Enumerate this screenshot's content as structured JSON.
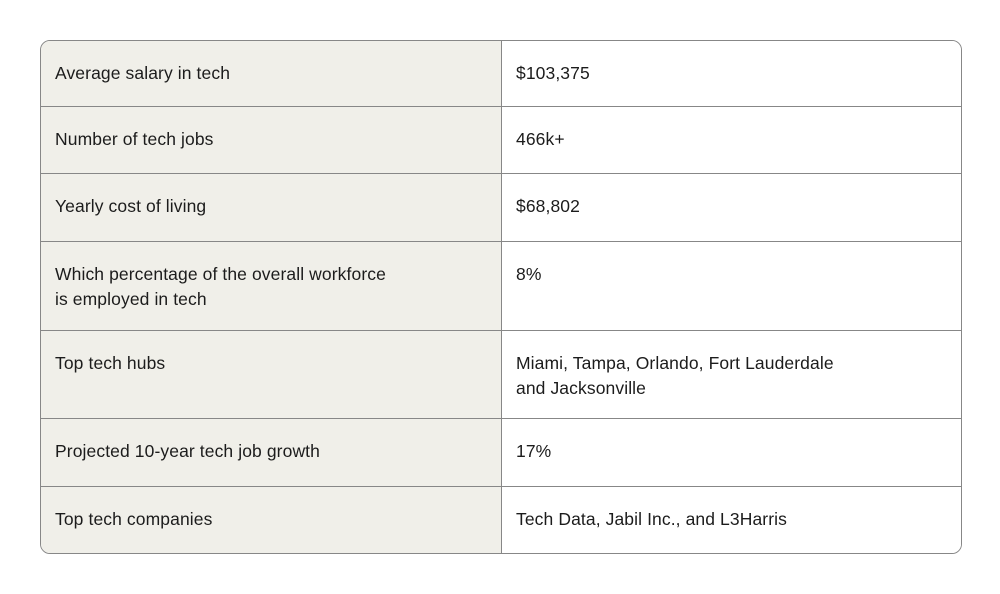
{
  "colors": {
    "page_bg": "#ffffff",
    "label_column_bg": "#f0efe9",
    "value_column_bg": "#ffffff",
    "border": "#878787",
    "text": "#1c1c1c"
  },
  "table": {
    "rows": [
      {
        "label": "Average salary in tech",
        "value": "$103,375"
      },
      {
        "label": "Number of tech jobs",
        "value": "466k+"
      },
      {
        "label": "Yearly cost of living",
        "value": "$68,802"
      },
      {
        "label": "Which percentage of the overall workforce\nis employed in tech",
        "value": "8%"
      },
      {
        "label": "Top tech hubs",
        "value": "Miami, Tampa, Orlando, Fort Lauderdale\nand Jacksonville"
      },
      {
        "label": "Projected 10-year tech job growth",
        "value": "17%"
      },
      {
        "label": "Top tech companies",
        "value": "Tech Data, Jabil Inc., and L3Harris"
      }
    ]
  }
}
